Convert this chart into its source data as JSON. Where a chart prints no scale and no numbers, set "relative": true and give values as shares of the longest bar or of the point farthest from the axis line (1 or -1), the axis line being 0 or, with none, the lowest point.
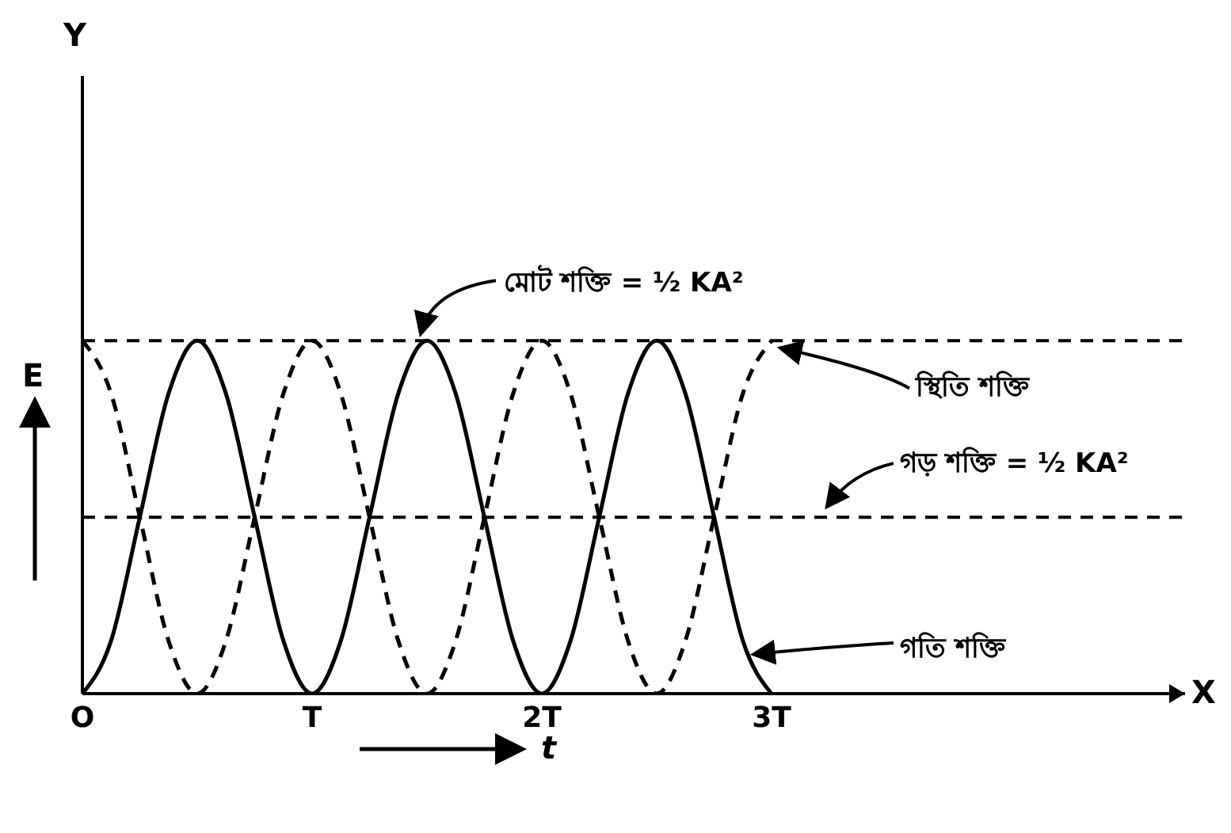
{
  "chart_data": {
    "type": "line",
    "relative": true,
    "xlabel": "t",
    "ylabel": "E",
    "annotations": [
      "Y",
      "X"
    ],
    "x": [
      0,
      0.125,
      0.25,
      0.375,
      0.5,
      0.625,
      0.75,
      0.875,
      1,
      1.125,
      1.25,
      1.375,
      1.5,
      1.625,
      1.75,
      1.875,
      2,
      2.125,
      2.25,
      2.375,
      2.5,
      2.625,
      2.75,
      2.875,
      3
    ],
    "xlim": [
      0,
      4.8
    ],
    "xticks": [
      {
        "value": 0,
        "label": "O"
      },
      {
        "value": 1,
        "label": "T"
      },
      {
        "value": 2,
        "label": "2T"
      },
      {
        "value": 3,
        "label": "3T"
      }
    ],
    "series": [
      {
        "name": "গতি শক্তি",
        "color": "#000000",
        "line_style": "solid",
        "values": [
          0,
          0.15,
          0.5,
          0.85,
          1,
          0.85,
          0.5,
          0.15,
          0,
          0.15,
          0.5,
          0.85,
          1,
          0.85,
          0.5,
          0.15,
          0,
          0.15,
          0.5,
          0.85,
          1,
          0.85,
          0.5,
          0.15,
          0
        ]
      },
      {
        "name": "স্থিতি শক্তি",
        "color": "#000000",
        "line_style": "dashed",
        "values": [
          1,
          0.85,
          0.5,
          0.15,
          0,
          0.15,
          0.5,
          0.85,
          1,
          0.85,
          0.5,
          0.15,
          0,
          0.15,
          0.5,
          0.85,
          1,
          0.85,
          0.5,
          0.15,
          0,
          0.15,
          0.5,
          0.85,
          1
        ]
      }
    ],
    "ref_lines": [
      {
        "axis": "y",
        "value": 1,
        "label": "মোট শক্তি = ½ KA²",
        "line_style": "dashed",
        "color": "#000000"
      },
      {
        "axis": "y",
        "value": 0.5,
        "label": "গড় শক্তি = ½ KA²",
        "line_style": "dashed",
        "color": "#000000"
      }
    ],
    "grid": false,
    "legend": false,
    "marker": "none"
  }
}
